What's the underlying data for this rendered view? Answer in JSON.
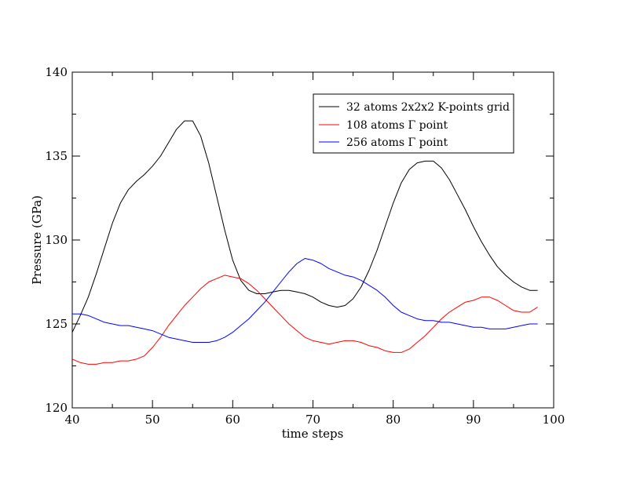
{
  "chart_data": {
    "type": "line",
    "title": "",
    "xlabel": "time steps",
    "ylabel": "Pressure (GPa)",
    "xlim": [
      40,
      100
    ],
    "ylim": [
      120,
      140
    ],
    "x_ticks": [
      40,
      50,
      60,
      70,
      80,
      90,
      100
    ],
    "y_ticks": [
      120,
      125,
      130,
      135,
      140
    ],
    "x_minor_step": 5,
    "y_minor_step": 2.5,
    "grid": false,
    "legend_position": "top-right",
    "series": [
      {
        "name": "32 atoms 2x2x2 K-points grid",
        "color": "#000000",
        "x": [
          40,
          41,
          42,
          43,
          44,
          45,
          46,
          47,
          48,
          49,
          50,
          51,
          52,
          53,
          54,
          55,
          56,
          57,
          58,
          59,
          60,
          61,
          62,
          63,
          64,
          65,
          66,
          67,
          68,
          69,
          70,
          71,
          72,
          73,
          74,
          75,
          76,
          77,
          78,
          79,
          80,
          81,
          82,
          83,
          84,
          85,
          86,
          87,
          88,
          89,
          90,
          91,
          92,
          93,
          94,
          95,
          96,
          97,
          98
        ],
        "values": [
          124.5,
          125.5,
          126.6,
          128.0,
          129.5,
          131.0,
          132.2,
          133.0,
          133.5,
          133.9,
          134.4,
          135.0,
          135.8,
          136.6,
          137.1,
          137.1,
          136.2,
          134.6,
          132.6,
          130.6,
          128.8,
          127.6,
          127.0,
          126.8,
          126.8,
          126.9,
          127.0,
          127.0,
          126.9,
          126.8,
          126.6,
          126.3,
          126.1,
          126.0,
          126.1,
          126.5,
          127.2,
          128.2,
          129.4,
          130.8,
          132.2,
          133.4,
          134.2,
          134.6,
          134.7,
          134.7,
          134.3,
          133.6,
          132.7,
          131.8,
          130.8,
          129.9,
          129.1,
          128.4,
          127.9,
          127.5,
          127.2,
          127.0,
          127.0
        ]
      },
      {
        "name": "108 atoms Γ point",
        "color": "#ff0000",
        "x": [
          40,
          41,
          42,
          43,
          44,
          45,
          46,
          47,
          48,
          49,
          50,
          51,
          52,
          53,
          54,
          55,
          56,
          57,
          58,
          59,
          60,
          61,
          62,
          63,
          64,
          65,
          66,
          67,
          68,
          69,
          70,
          71,
          72,
          73,
          74,
          75,
          76,
          77,
          78,
          79,
          80,
          81,
          82,
          83,
          84,
          85,
          86,
          87,
          88,
          89,
          90,
          91,
          92,
          93,
          94,
          95,
          96,
          97,
          98
        ],
        "values": [
          122.9,
          122.7,
          122.6,
          122.6,
          122.7,
          122.7,
          122.8,
          122.8,
          122.9,
          123.1,
          123.6,
          124.2,
          124.9,
          125.5,
          126.1,
          126.6,
          127.1,
          127.5,
          127.7,
          127.9,
          127.8,
          127.7,
          127.4,
          127.0,
          126.5,
          126.0,
          125.5,
          125.0,
          124.6,
          124.2,
          124.0,
          123.9,
          123.8,
          123.9,
          124.0,
          124.0,
          123.9,
          123.7,
          123.6,
          123.4,
          123.3,
          123.3,
          123.5,
          123.9,
          124.3,
          124.8,
          125.3,
          125.7,
          126.0,
          126.3,
          126.4,
          126.6,
          126.6,
          126.4,
          126.1,
          125.8,
          125.7,
          125.7,
          126.0
        ]
      },
      {
        "name": "256 atoms Γ point",
        "color": "#0000ff",
        "x": [
          40,
          41,
          42,
          43,
          44,
          45,
          46,
          47,
          48,
          49,
          50,
          51,
          52,
          53,
          54,
          55,
          56,
          57,
          58,
          59,
          60,
          61,
          62,
          63,
          64,
          65,
          66,
          67,
          68,
          69,
          70,
          71,
          72,
          73,
          74,
          75,
          76,
          77,
          78,
          79,
          80,
          81,
          82,
          83,
          84,
          85,
          86,
          87,
          88,
          89,
          90,
          91,
          92,
          93,
          94,
          95,
          96,
          97,
          98
        ],
        "values": [
          125.6,
          125.6,
          125.5,
          125.3,
          125.1,
          125.0,
          124.9,
          124.9,
          124.8,
          124.7,
          124.6,
          124.4,
          124.2,
          124.1,
          124.0,
          123.9,
          123.9,
          123.9,
          124.0,
          124.2,
          124.5,
          124.9,
          125.3,
          125.8,
          126.3,
          126.9,
          127.5,
          128.1,
          128.6,
          128.9,
          128.8,
          128.6,
          128.3,
          128.1,
          127.9,
          127.8,
          127.6,
          127.3,
          127.0,
          126.6,
          126.1,
          125.7,
          125.5,
          125.3,
          125.2,
          125.2,
          125.1,
          125.1,
          125.0,
          124.9,
          124.8,
          124.8,
          124.7,
          124.7,
          124.7,
          124.8,
          124.9,
          125.0,
          125.0
        ]
      }
    ]
  }
}
